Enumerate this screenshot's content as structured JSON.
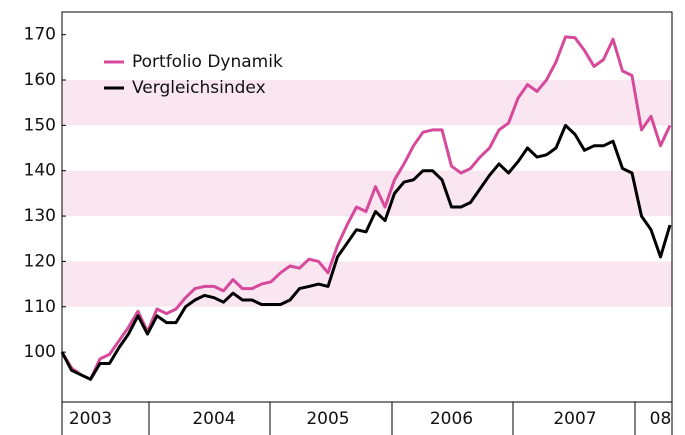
{
  "chart_data": {
    "type": "line",
    "categories": [
      null,
      null,
      null,
      "2003",
      null,
      null,
      null,
      null,
      null,
      null,
      null,
      null,
      null,
      null,
      null,
      null,
      "2004",
      null,
      null,
      null,
      null,
      null,
      null,
      null,
      null,
      null,
      null,
      null,
      "2005",
      null,
      null,
      null,
      null,
      null,
      null,
      null,
      null,
      null,
      null,
      null,
      null,
      "2006",
      null,
      null,
      null,
      null,
      null,
      null,
      null,
      null,
      null,
      null,
      null,
      null,
      "2007",
      null,
      null,
      null,
      null,
      null,
      null,
      null,
      null,
      "08",
      null
    ],
    "series": [
      {
        "name": "Portfolio Dynamik",
        "color": "#d6499b",
        "values": [
          100,
          96.5,
          95,
          94,
          98.5,
          99.5,
          102.5,
          105.5,
          109,
          104.5,
          109.5,
          108.5,
          109.5,
          112,
          114,
          114.5,
          114.5,
          113.5,
          116,
          114,
          114,
          115,
          115.5,
          117.5,
          119,
          118.5,
          120.5,
          120,
          117.5,
          123.5,
          128,
          132,
          131,
          136.5,
          132,
          138,
          141.5,
          145.5,
          148.5,
          149,
          149,
          141,
          139.5,
          140.5,
          143,
          145,
          149,
          150.5,
          156,
          159,
          157.5,
          160,
          164,
          169.5,
          169.3,
          166.5,
          163,
          164.5,
          169,
          162,
          161,
          149,
          152,
          145.5,
          150
        ]
      },
      {
        "name": "Vergleichsindex",
        "color": "#000000",
        "values": [
          100,
          96,
          95,
          94,
          97.5,
          97.5,
          101,
          104,
          108,
          104,
          108,
          106.5,
          106.5,
          110,
          111.5,
          112.5,
          112,
          111,
          113,
          111.5,
          111.5,
          110.5,
          110.5,
          110.5,
          111.5,
          114,
          114.5,
          115,
          114.5,
          121,
          124,
          127,
          126.5,
          131,
          129,
          135,
          137.5,
          138,
          140,
          140,
          138,
          132,
          132,
          133,
          136,
          139,
          141.5,
          139.5,
          142,
          145,
          143,
          143.5,
          145,
          150,
          148,
          144.5,
          145.5,
          145.5,
          146.5,
          140.5,
          139.5,
          130,
          127,
          121,
          128
        ]
      }
    ],
    "ylim": [
      89,
      175
    ],
    "yticks": [
      100,
      110,
      120,
      130,
      140,
      150,
      160,
      170
    ],
    "grid": true,
    "band_color": "#f9e6f1",
    "legend": "upper left"
  }
}
